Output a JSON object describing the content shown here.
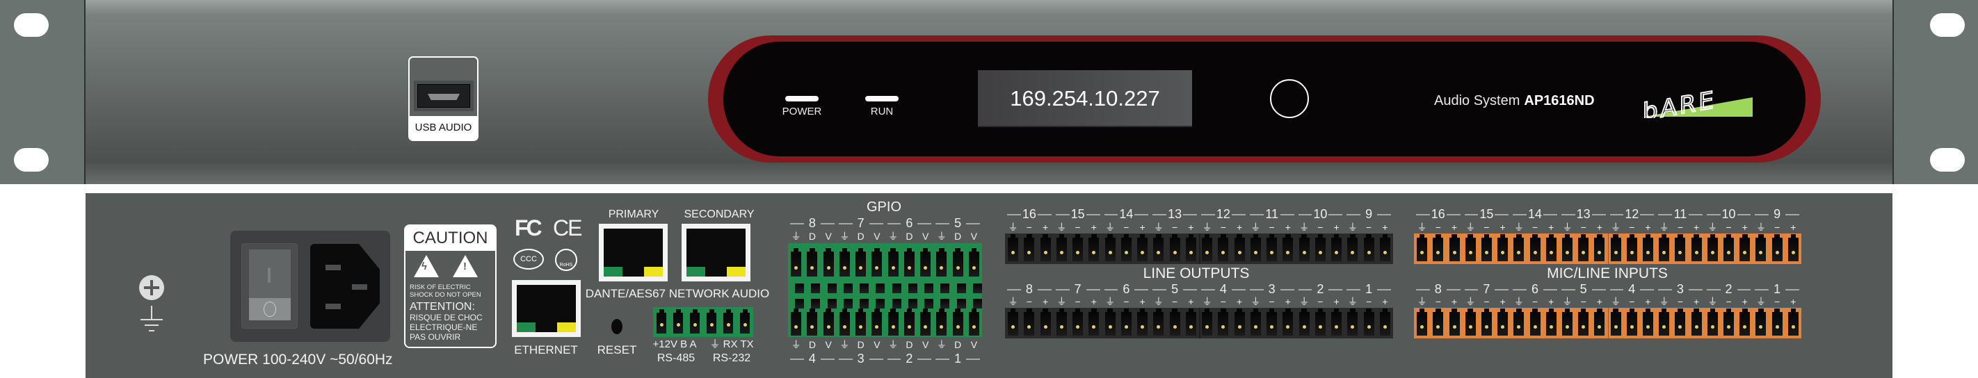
{
  "front": {
    "usb_label": "USB AUDIO",
    "leds": [
      {
        "label": "POWER"
      },
      {
        "label": "RUN"
      }
    ],
    "display_text": "169.254.10.227",
    "model_prefix": "Audio System",
    "model_name": "AP1616ND",
    "logo_text": "bARE",
    "colors": {
      "bezel": "#86191f",
      "logo_accent": "#9ed65c"
    }
  },
  "back": {
    "power_label": "POWER 100-240V ~50/60Hz",
    "caution": {
      "title": "CAUTION",
      "line1": "RISK OF ELECTRIC",
      "line2": "SHOCK DO NOT OPEN",
      "attention": "ATTENTION:",
      "fr1": "RISQUE DE CHOC",
      "fr2": "ELECTRIQUE-NE",
      "fr3": "PAS OUVRIR"
    },
    "certs": {
      "fc": "FC",
      "ce": "CE",
      "ccc": "CCC",
      "rohs": "RoHS"
    },
    "ethernet_label": "ETHERNET",
    "primary_label": "PRIMARY",
    "secondary_label": "SECONDARY",
    "dante_label": "DANTE/AES67 NETWORK AUDIO",
    "reset_label": "RESET",
    "rs485_pins": "+12V B  A",
    "rs485_label": "RS-485",
    "rs232_pins": "⏚ RX TX",
    "rs232_label": "RS-232",
    "gpio": {
      "title": "GPIO",
      "top_channels": [
        "8",
        "7",
        "6",
        "5"
      ],
      "bottom_channels": [
        "4",
        "3",
        "2",
        "1"
      ],
      "pin_labels": [
        "⏚",
        "D",
        "V"
      ]
    },
    "line_outputs": {
      "title": "LINE OUTPUTS",
      "top_channels": [
        "16",
        "15",
        "14",
        "13",
        "12",
        "11",
        "10",
        "9"
      ],
      "bottom_channels": [
        "8",
        "7",
        "6",
        "5",
        "4",
        "3",
        "2",
        "1"
      ],
      "pin_labels": [
        "⏚",
        "−",
        "+"
      ]
    },
    "mic_line_inputs": {
      "title": "MIC/LINE INPUTS",
      "top_channels": [
        "16",
        "15",
        "14",
        "13",
        "12",
        "11",
        "10",
        "9"
      ],
      "bottom_channels": [
        "8",
        "7",
        "6",
        "5",
        "4",
        "3",
        "2",
        "1"
      ],
      "pin_labels": [
        "⏚",
        "−",
        "+"
      ]
    },
    "colors": {
      "gpio_block": "#218c4c",
      "output_block": "#2b2b2b",
      "input_block": "#e2843c",
      "rs_block": "#218c4c"
    }
  }
}
